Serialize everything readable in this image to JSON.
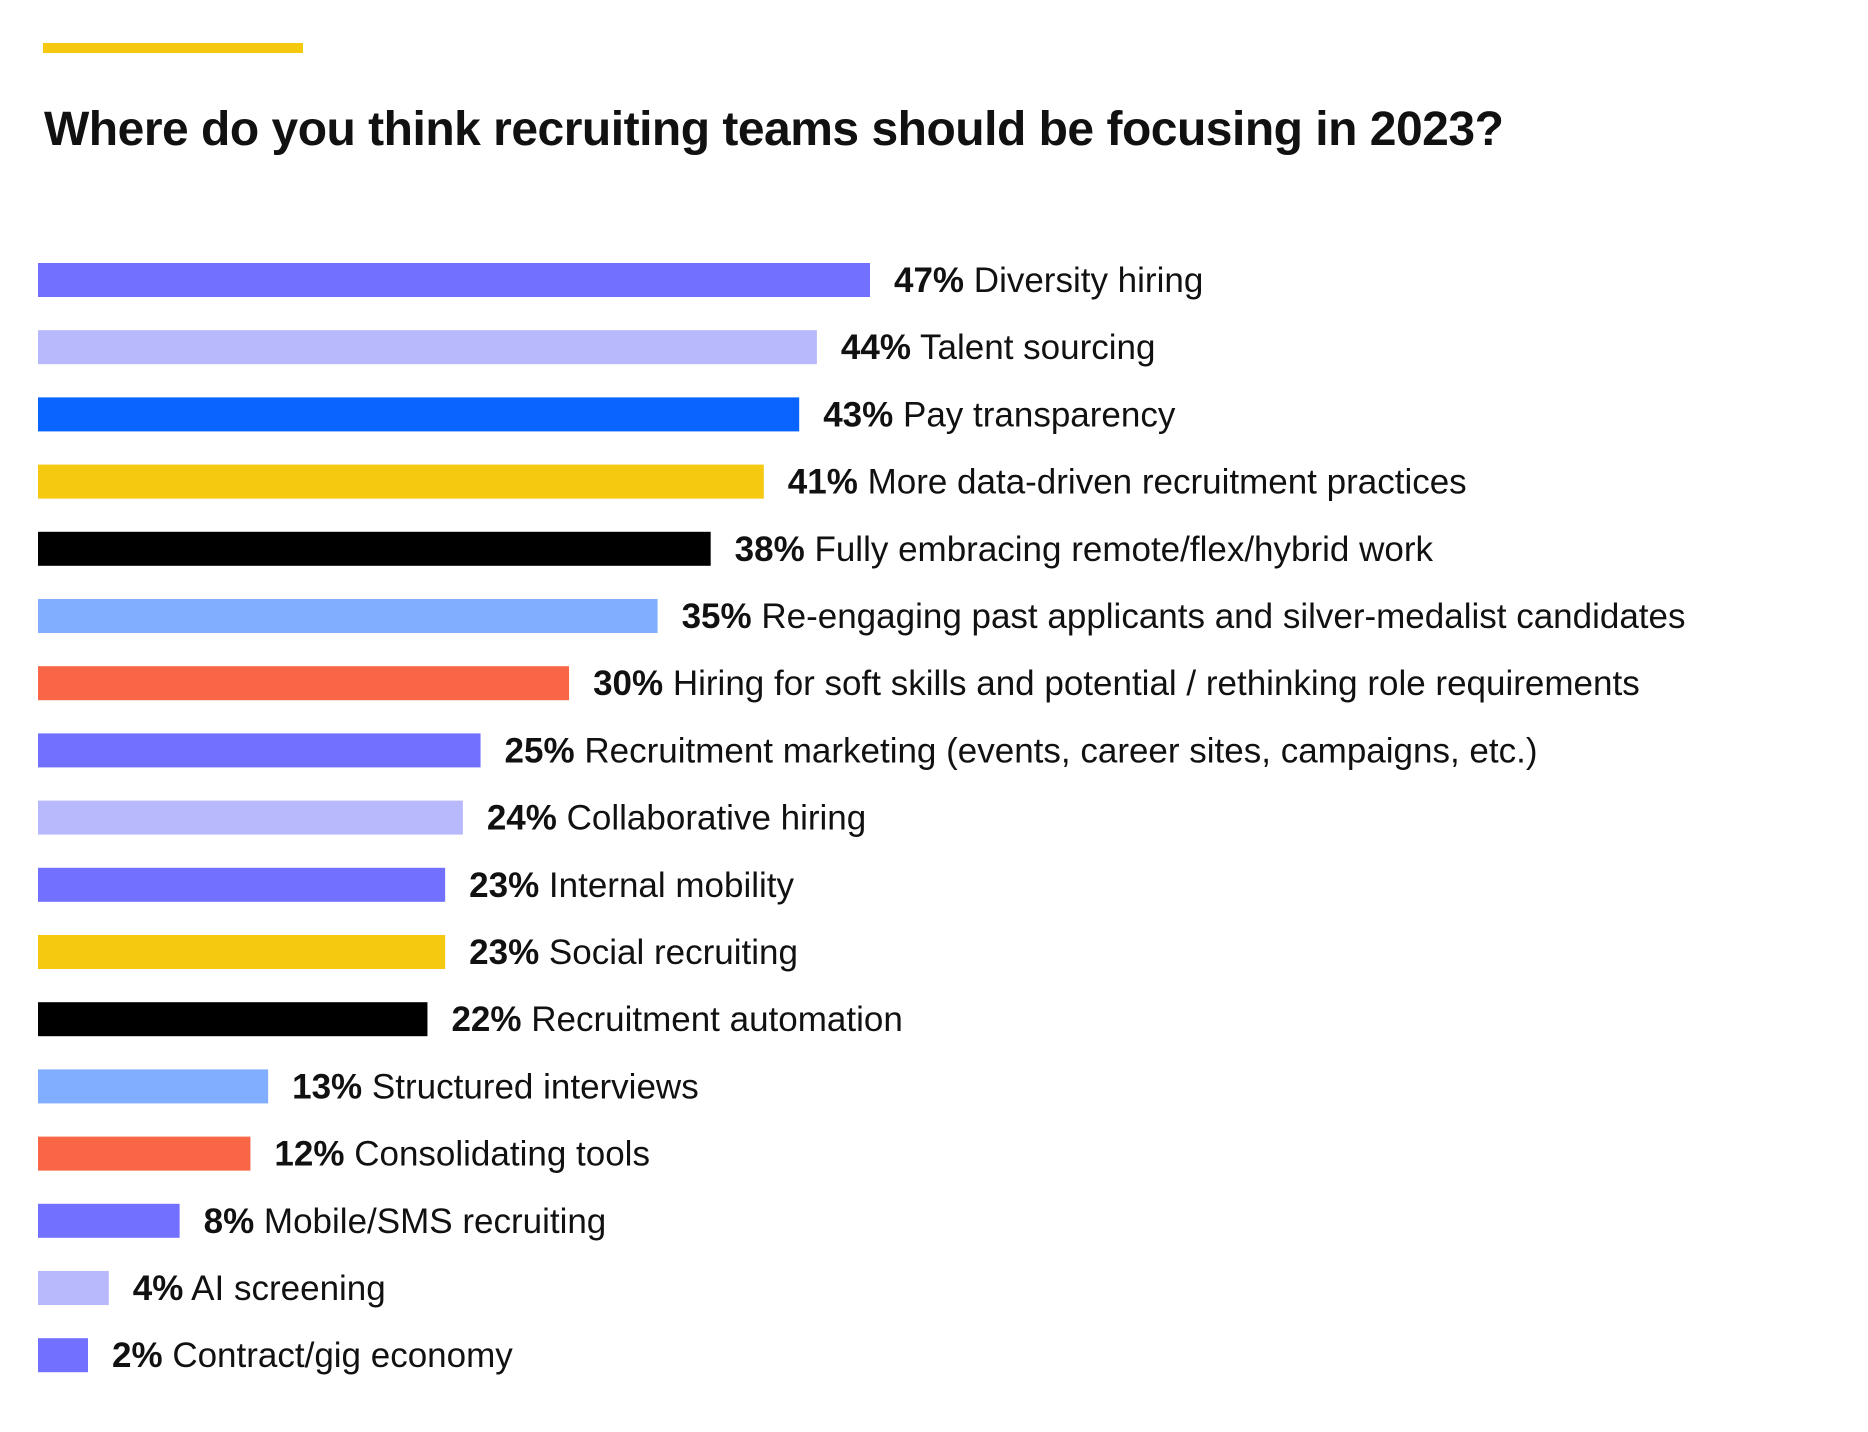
{
  "chart_data": {
    "type": "bar",
    "orientation": "horizontal",
    "title": "Where do you think recruiting teams should be focusing in 2023?",
    "xlabel": "",
    "ylabel": "",
    "grid": false,
    "xlim": [
      0,
      47
    ],
    "accent_color": "#F5C90F",
    "categories": [
      "Diversity hiring",
      "Talent sourcing",
      "Pay transparency",
      "More data-driven recruitment practices",
      "Fully embracing remote/flex/hybrid work",
      "Re-engaging past applicants and silver-medalist candidates",
      "Hiring for soft skills and potential / rethinking role requirements",
      "Recruitment marketing (events, career sites, campaigns, etc.)",
      "Collaborative hiring",
      "Internal mobility",
      "Social recruiting",
      "Recruitment automation",
      "Structured interviews",
      "Consolidating tools",
      "Mobile/SMS recruiting",
      "AI screening",
      "Contract/gig economy"
    ],
    "values": [
      47,
      44,
      43,
      41,
      38,
      35,
      30,
      25,
      24,
      23,
      23,
      22,
      13,
      12,
      8,
      4,
      2
    ],
    "data_labels": [
      "47%",
      "44%",
      "43%",
      "41%",
      "38%",
      "35%",
      "30%",
      "25%",
      "24%",
      "23%",
      "23%",
      "22%",
      "13%",
      "12%",
      "8%",
      "4%",
      "2%"
    ],
    "colors": [
      "#7270FF",
      "#B8B8FC",
      "#0A64FF",
      "#F5C90F",
      "#000000",
      "#82AEFF",
      "#F96645",
      "#7270FF",
      "#B8B8FC",
      "#7270FF",
      "#F5C90F",
      "#000000",
      "#82AEFF",
      "#F96645",
      "#7270FF",
      "#B8B8FC",
      "#7270FF"
    ]
  }
}
